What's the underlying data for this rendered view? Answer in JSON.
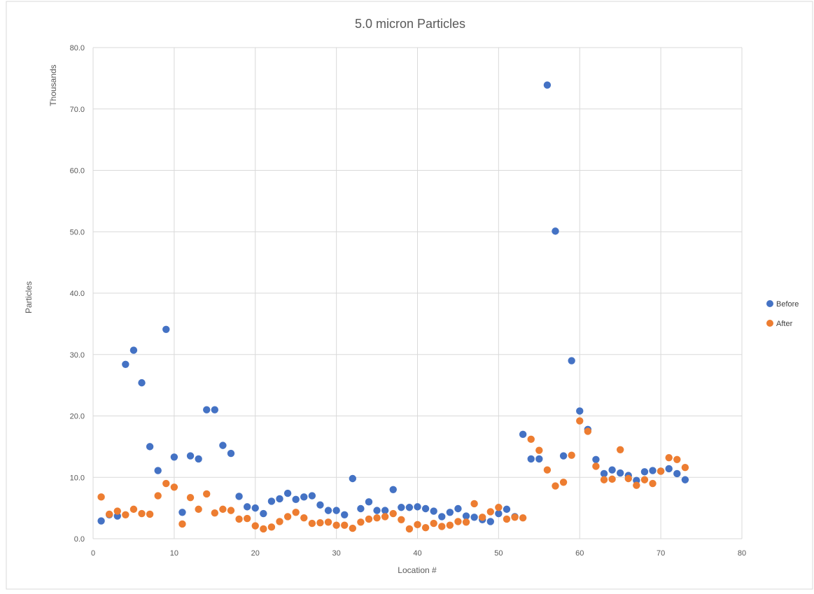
{
  "chart_data": {
    "type": "scatter",
    "title": "5.0 micron Particles",
    "xlabel": "Location #",
    "ylabel": "Particles",
    "y_display_units": "Thousands",
    "xlim": [
      0,
      80
    ],
    "ylim": [
      0,
      80
    ],
    "x_ticks": [
      "0",
      "10",
      "20",
      "30",
      "40",
      "50",
      "60",
      "70",
      "80"
    ],
    "y_ticks": [
      "0.0",
      "10.0",
      "20.0",
      "30.0",
      "40.0",
      "50.0",
      "60.0",
      "70.0",
      "80.0"
    ],
    "grid": true,
    "legend_position": "right",
    "series": [
      {
        "name": "Before",
        "color": "#4472C4",
        "x": [
          1,
          2,
          3,
          4,
          5,
          6,
          7,
          8,
          9,
          10,
          11,
          12,
          13,
          14,
          15,
          16,
          17,
          18,
          19,
          20,
          21,
          22,
          23,
          24,
          25,
          26,
          27,
          28,
          29,
          30,
          31,
          32,
          33,
          34,
          35,
          36,
          37,
          38,
          39,
          40,
          41,
          42,
          43,
          44,
          45,
          46,
          47,
          48,
          49,
          50,
          51,
          52,
          53,
          54,
          55,
          56,
          57,
          58,
          59,
          60,
          61,
          62,
          63,
          64,
          65,
          66,
          67,
          68,
          69,
          70,
          71,
          72,
          73
        ],
        "y": [
          2.9,
          3.9,
          3.7,
          28.4,
          30.7,
          25.4,
          15.0,
          11.1,
          34.1,
          13.3,
          4.3,
          13.5,
          13.0,
          21.0,
          21.0,
          15.2,
          13.9,
          6.9,
          5.2,
          5.0,
          4.1,
          6.1,
          6.5,
          7.4,
          6.4,
          6.8,
          7.0,
          5.5,
          4.6,
          4.6,
          3.9,
          9.8,
          4.9,
          6.0,
          4.6,
          4.6,
          8.0,
          5.1,
          5.1,
          5.2,
          4.9,
          4.5,
          3.6,
          4.3,
          4.9,
          3.7,
          3.5,
          3.1,
          2.8,
          4.1,
          4.8,
          3.6,
          17.0,
          13.0,
          13.0,
          73.9,
          50.1,
          13.5,
          29.0,
          20.8,
          17.8,
          12.9,
          10.6,
          11.2,
          10.7,
          10.3,
          9.5,
          10.9,
          11.1,
          11.0,
          11.4,
          10.6,
          9.6
        ]
      },
      {
        "name": "After",
        "color": "#ED7D31",
        "x": [
          1,
          2,
          3,
          4,
          5,
          6,
          7,
          8,
          9,
          10,
          11,
          12,
          13,
          14,
          15,
          16,
          17,
          18,
          19,
          20,
          21,
          22,
          23,
          24,
          25,
          26,
          27,
          28,
          29,
          30,
          31,
          32,
          33,
          34,
          35,
          36,
          37,
          38,
          39,
          40,
          41,
          42,
          43,
          44,
          45,
          46,
          47,
          48,
          49,
          50,
          51,
          52,
          53,
          54,
          55,
          56,
          57,
          58,
          59,
          60,
          61,
          62,
          63,
          64,
          65,
          66,
          67,
          68,
          69,
          70,
          71,
          72,
          73
        ],
        "y": [
          6.8,
          4.0,
          4.5,
          3.9,
          4.8,
          4.1,
          4.0,
          7.0,
          9.0,
          8.4,
          2.4,
          6.7,
          4.8,
          7.3,
          4.2,
          4.8,
          4.6,
          3.2,
          3.3,
          2.1,
          1.6,
          1.9,
          2.8,
          3.6,
          4.3,
          3.4,
          2.5,
          2.6,
          2.7,
          2.2,
          2.2,
          1.7,
          2.7,
          3.2,
          3.4,
          3.6,
          4.1,
          3.1,
          1.6,
          2.3,
          1.8,
          2.5,
          2.0,
          2.2,
          2.8,
          2.7,
          5.7,
          3.5,
          4.4,
          5.1,
          3.2,
          3.5,
          3.4,
          16.2,
          14.4,
          11.2,
          8.6,
          9.2,
          13.6,
          19.2,
          17.5,
          11.8,
          9.6,
          9.7,
          14.5,
          9.8,
          8.7,
          9.6,
          9.0,
          11.0,
          13.2,
          12.9,
          11.6
        ]
      }
    ]
  }
}
